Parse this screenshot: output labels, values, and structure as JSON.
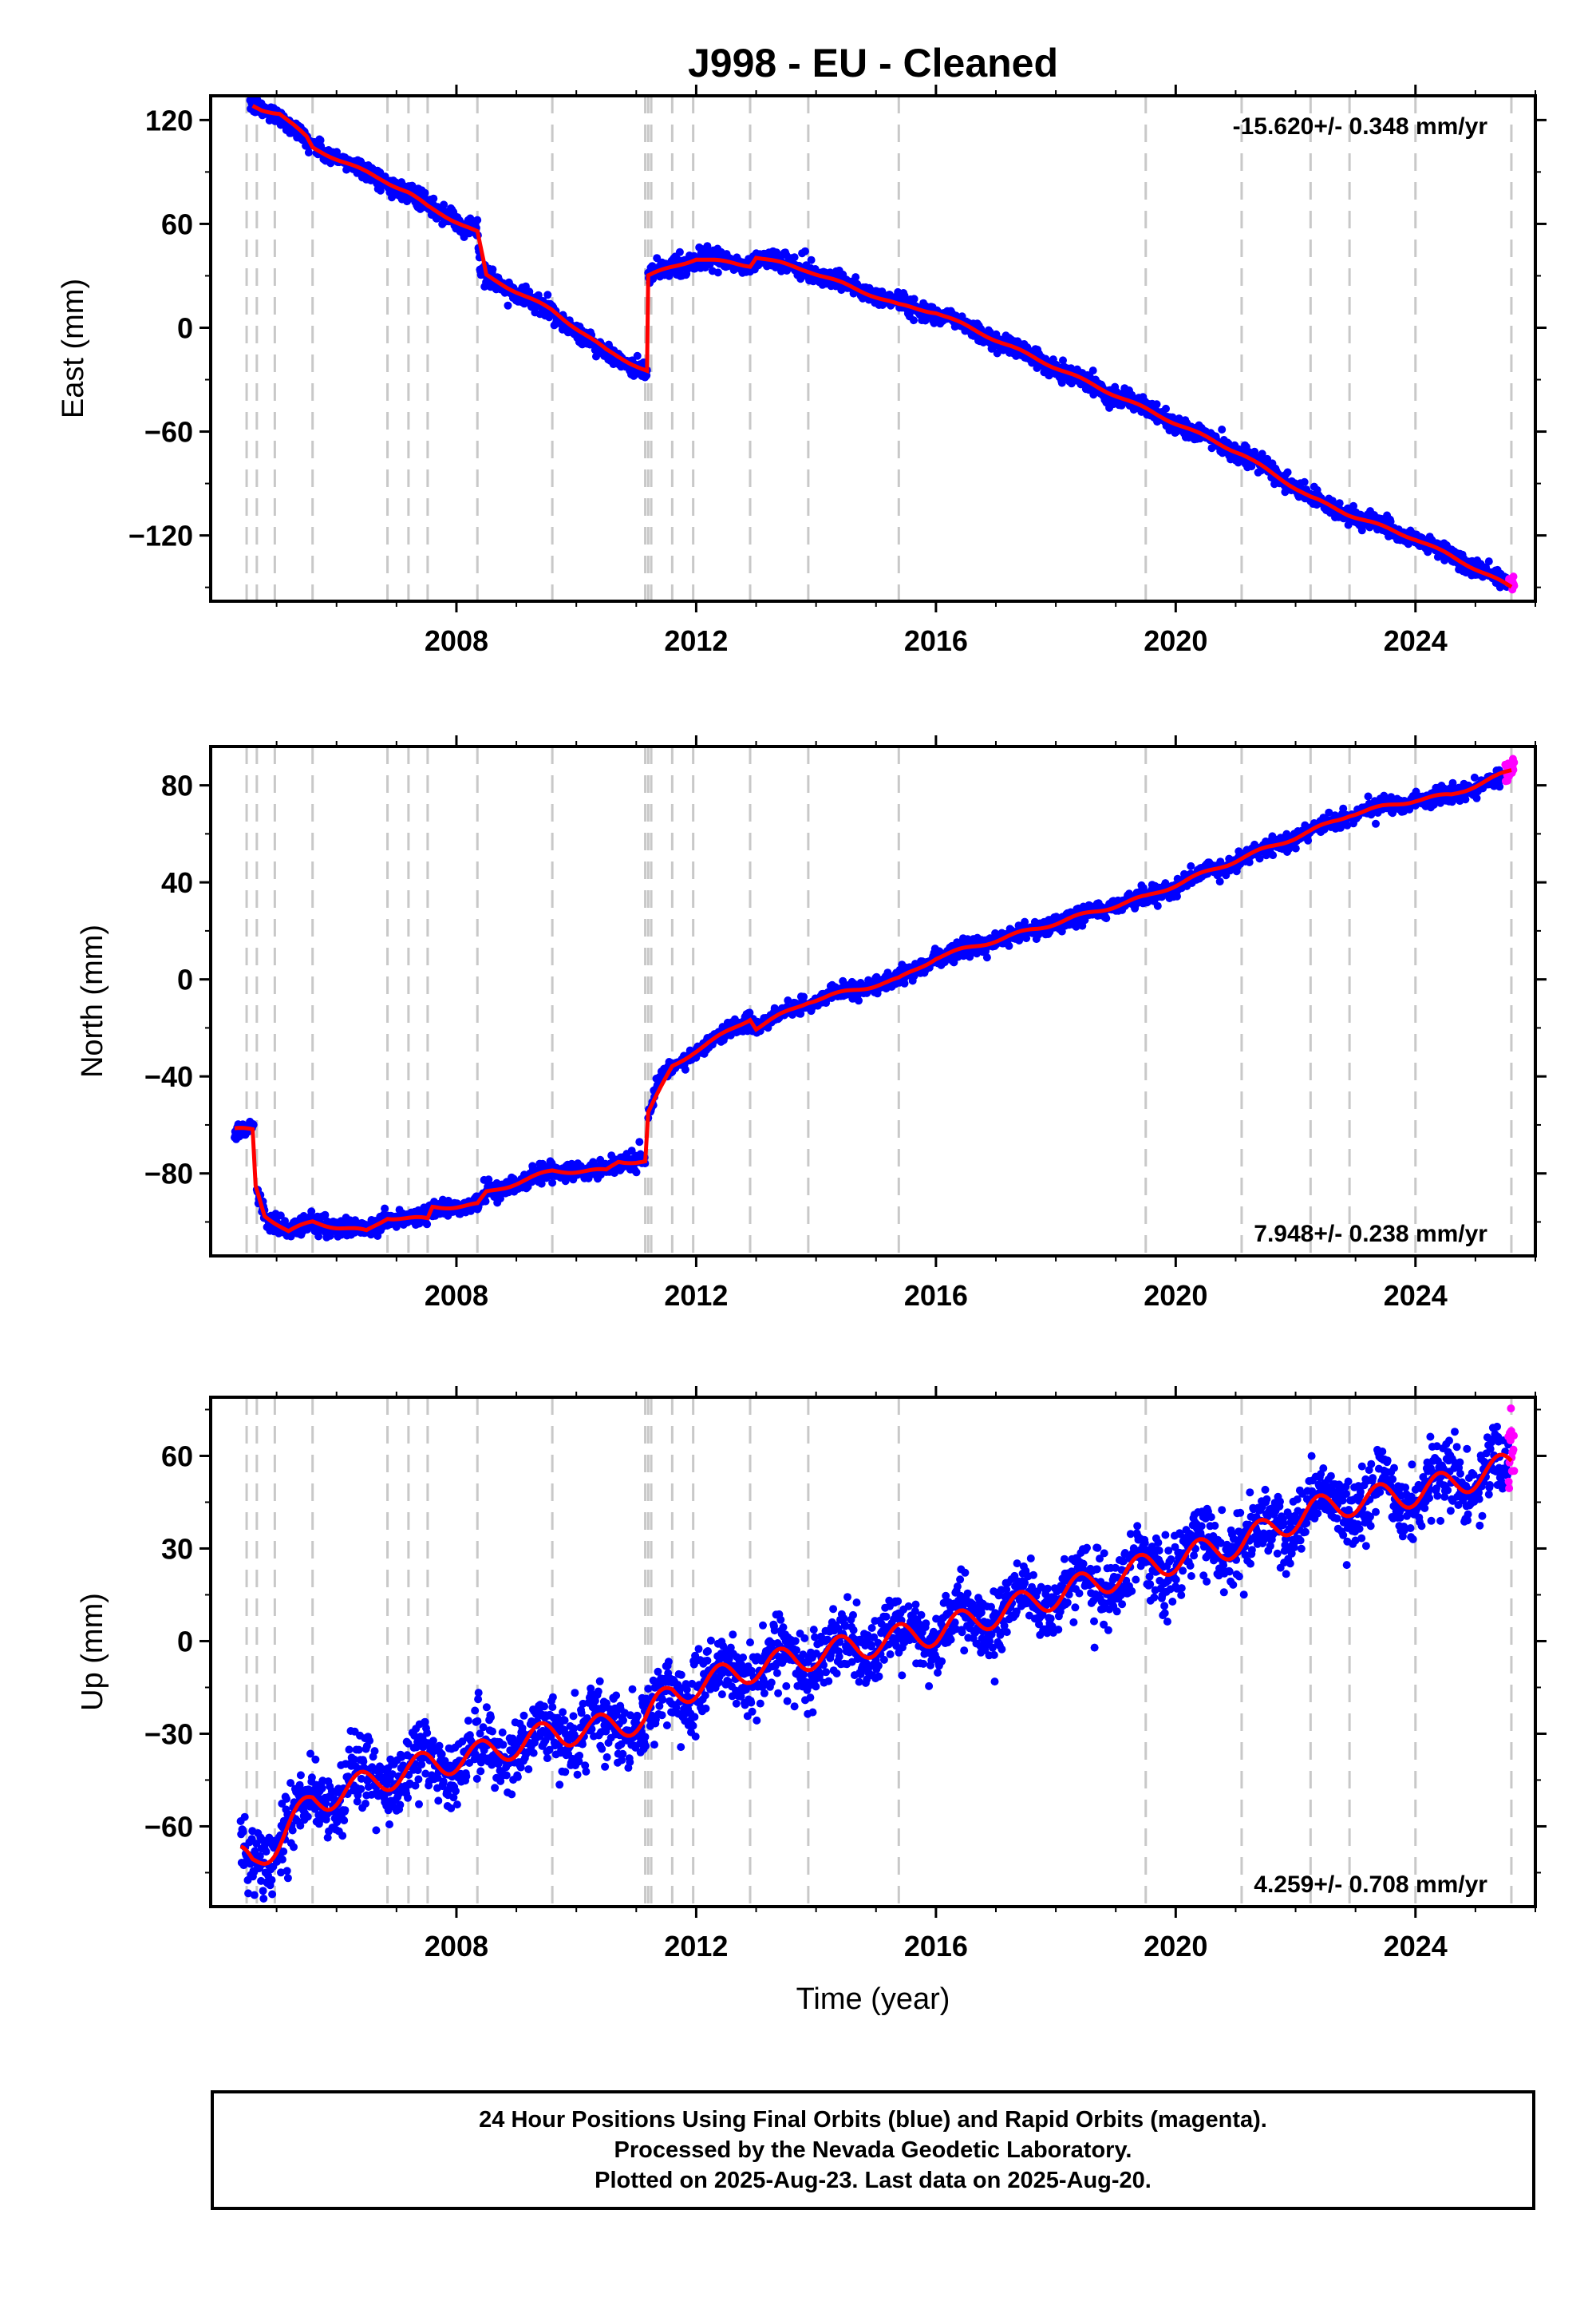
{
  "colors": {
    "final": "#0000ff",
    "rapid": "#ff00ff",
    "model": "#ff0000",
    "event_line": "#c8c8c8",
    "frame": "#000000"
  },
  "chart_data": [
    {
      "type": "scatter",
      "title": "J998  - EU - Cleaned",
      "ylabel": "East (mm)",
      "xlabel": "",
      "xlim": [
        2003.9,
        2026.0
      ],
      "ylim": [
        -158,
        134
      ],
      "x_ticks": [
        2008,
        2012,
        2016,
        2020,
        2024
      ],
      "y_ticks": [
        120,
        60,
        0,
        -60,
        -120
      ],
      "rate_label": "-15.620+/- 0.348 mm/yr",
      "rate_position": "top-right",
      "grid": false,
      "event_lines": [
        2004.5,
        2004.67,
        2004.97,
        2005.6,
        2006.85,
        2007.2,
        2007.52,
        2008.35,
        2009.6,
        2011.15,
        2011.2,
        2011.25,
        2011.6,
        2011.95,
        2012.9,
        2013.87,
        2015.38,
        2019.5,
        2021.1,
        2022.25,
        2022.9,
        2024.0,
        2025.6
      ],
      "model_path": [
        [
          2004.6,
          128
        ],
        [
          2004.75,
          126
        ],
        [
          2004.9,
          125
        ],
        [
          2005.05,
          124
        ],
        [
          2005.5,
          110
        ],
        [
          2005.6,
          104
        ],
        [
          2006.8,
          85
        ],
        [
          2007.2,
          78
        ],
        [
          2007.52,
          70
        ],
        [
          2008.35,
          55
        ],
        [
          2008.5,
          30
        ],
        [
          2009.6,
          10
        ],
        [
          2010.5,
          -13
        ],
        [
          2011.18,
          -25
        ],
        [
          2011.2,
          30
        ],
        [
          2011.6,
          35
        ],
        [
          2012,
          40
        ],
        [
          2012.9,
          36
        ],
        [
          2013,
          41
        ],
        [
          2013.87,
          33
        ],
        [
          2015.38,
          13
        ],
        [
          2016,
          9
        ],
        [
          2019.5,
          -47
        ],
        [
          2021.1,
          -73
        ],
        [
          2022.25,
          -98
        ],
        [
          2022.9,
          -108
        ],
        [
          2024,
          -122
        ],
        [
          2024.6,
          -132
        ],
        [
          2025.6,
          -150
        ]
      ],
      "series": [
        {
          "name": "Final Orbits",
          "segments": [
            {
              "x0": 2004.55,
              "x1": 2011.18,
              "anchors": [
                [
                  2004.55,
                  129
                ],
                [
                  2005.0,
                  124
                ],
                [
                  2005.6,
                  105
                ],
                [
                  2006.85,
                  84
                ],
                [
                  2007.2,
                  78
                ],
                [
                  2007.52,
                  70
                ],
                [
                  2008.35,
                  56
                ],
                [
                  2008.4,
                  32
                ],
                [
                  2009.6,
                  8
                ],
                [
                  2010.5,
                  -15
                ],
                [
                  2011.18,
                  -25
                ]
              ],
              "scatter": 2.5,
              "annual": 1.0
            },
            {
              "x0": 2011.2,
              "x1": 2025.55,
              "anchors": [
                [
                  2011.2,
                  30
                ],
                [
                  2011.6,
                  35
                ],
                [
                  2012,
                  40
                ],
                [
                  2012.9,
                  36
                ],
                [
                  2013,
                  41
                ],
                [
                  2013.87,
                  33
                ],
                [
                  2015.38,
                  14
                ],
                [
                  2016,
                  9
                ],
                [
                  2019.5,
                  -47
                ],
                [
                  2021.1,
                  -73
                ],
                [
                  2022.25,
                  -98
                ],
                [
                  2022.9,
                  -108
                ],
                [
                  2024,
                  -122
                ],
                [
                  2025.55,
                  -148
                ]
              ],
              "scatter": 2.5,
              "annual": 1.0
            }
          ]
        },
        {
          "name": "Rapid Orbits",
          "segments": [
            {
              "x0": 2025.55,
              "x1": 2025.65,
              "anchors": [
                [
                  2025.55,
                  -146
                ],
                [
                  2025.65,
                  -148
                ]
              ],
              "scatter": 2.2,
              "annual": 0
            }
          ]
        }
      ]
    },
    {
      "type": "scatter",
      "title": "",
      "ylabel": "North (mm)",
      "xlabel": "",
      "xlim": [
        2003.9,
        2026.0
      ],
      "ylim": [
        -114,
        96
      ],
      "x_ticks": [
        2008,
        2012,
        2016,
        2020,
        2024
      ],
      "y_ticks": [
        80,
        40,
        0,
        -40,
        -80
      ],
      "rate_label": "7.948+/- 0.238 mm/yr",
      "rate_position": "bottom-right",
      "grid": false,
      "event_lines": [
        2004.5,
        2004.67,
        2004.97,
        2005.6,
        2006.85,
        2007.2,
        2007.52,
        2008.35,
        2009.6,
        2011.15,
        2011.2,
        2011.25,
        2011.6,
        2011.95,
        2012.9,
        2013.87,
        2015.38,
        2019.5,
        2021.1,
        2022.25,
        2022.9,
        2024.0,
        2025.6
      ],
      "model_path": [
        [
          2004.3,
          -62
        ],
        [
          2004.6,
          -62
        ],
        [
          2004.65,
          -85
        ],
        [
          2004.8,
          -97
        ],
        [
          2005.2,
          -104
        ],
        [
          2005.6,
          -100
        ],
        [
          2006,
          -102
        ],
        [
          2006.5,
          -104
        ],
        [
          2006.85,
          -98
        ],
        [
          2007.52,
          -99
        ],
        [
          2007.6,
          -94
        ],
        [
          2008.35,
          -93
        ],
        [
          2008.5,
          -88
        ],
        [
          2009.6,
          -79
        ],
        [
          2010.5,
          -79
        ],
        [
          2010.7,
          -75
        ],
        [
          2011.15,
          -75
        ],
        [
          2011.2,
          -55
        ],
        [
          2011.6,
          -36
        ],
        [
          2011.95,
          -30
        ],
        [
          2012.5,
          -22
        ],
        [
          2012.9,
          -16
        ],
        [
          2013,
          -20
        ],
        [
          2013.87,
          -9
        ],
        [
          2015.38,
          0
        ],
        [
          2016,
          9
        ],
        [
          2019.5,
          34
        ],
        [
          2021.1,
          50
        ],
        [
          2022.25,
          61
        ],
        [
          2022.9,
          68
        ],
        [
          2024,
          74
        ],
        [
          2024.6,
          76
        ],
        [
          2025.6,
          86
        ]
      ],
      "series": [
        {
          "name": "Final Orbits",
          "segments": [
            {
              "x0": 2004.3,
              "x1": 2004.62,
              "anchors": [
                [
                  2004.3,
                  -62
                ],
                [
                  2004.62,
                  -61
                ]
              ],
              "scatter": 1.5,
              "annual": 0
            },
            {
              "x0": 2004.67,
              "x1": 2011.15,
              "anchors": [
                [
                  2004.67,
                  -87
                ],
                [
                  2004.85,
                  -99
                ],
                [
                  2005.2,
                  -104
                ],
                [
                  2005.6,
                  -100
                ],
                [
                  2006,
                  -102
                ],
                [
                  2006.5,
                  -104
                ],
                [
                  2006.85,
                  -98
                ],
                [
                  2007.52,
                  -99
                ],
                [
                  2007.6,
                  -94
                ],
                [
                  2008.35,
                  -93
                ],
                [
                  2008.5,
                  -88
                ],
                [
                  2009.6,
                  -79
                ],
                [
                  2010.5,
                  -79
                ],
                [
                  2010.7,
                  -75
                ],
                [
                  2011.15,
                  -75
                ]
              ],
              "scatter": 1.8,
              "annual": 0.8
            },
            {
              "x0": 2011.2,
              "x1": 2025.5,
              "anchors": [
                [
                  2011.2,
                  -56
                ],
                [
                  2011.4,
                  -42
                ],
                [
                  2011.6,
                  -36
                ],
                [
                  2011.95,
                  -30
                ],
                [
                  2012.5,
                  -22
                ],
                [
                  2012.9,
                  -16
                ],
                [
                  2013,
                  -20
                ],
                [
                  2013.87,
                  -9
                ],
                [
                  2015.38,
                  0
                ],
                [
                  2016,
                  9
                ],
                [
                  2019.5,
                  34
                ],
                [
                  2021.1,
                  50
                ],
                [
                  2022.25,
                  61
                ],
                [
                  2022.9,
                  68
                ],
                [
                  2024,
                  74
                ],
                [
                  2024.6,
                  76
                ],
                [
                  2025.5,
                  83
                ]
              ],
              "scatter": 1.6,
              "annual": 0.8
            }
          ]
        },
        {
          "name": "Rapid Orbits",
          "segments": [
            {
              "x0": 2025.5,
              "x1": 2025.65,
              "anchors": [
                [
                  2025.5,
                  85
                ],
                [
                  2025.65,
                  89
                ]
              ],
              "scatter": 2.0,
              "annual": 0
            }
          ]
        }
      ]
    },
    {
      "type": "scatter",
      "title": "",
      "ylabel": "Up (mm)",
      "xlabel": "Time (year)",
      "xlim": [
        2003.9,
        2026.0
      ],
      "ylim": [
        -86,
        79
      ],
      "x_ticks": [
        2008,
        2012,
        2016,
        2020,
        2024
      ],
      "y_ticks": [
        60,
        30,
        0,
        -30,
        -60
      ],
      "rate_label": "4.259+/- 0.708 mm/yr",
      "rate_position": "bottom-right",
      "grid": false,
      "event_lines": [
        2004.5,
        2004.67,
        2004.97,
        2005.6,
        2006.85,
        2007.2,
        2007.52,
        2008.35,
        2009.6,
        2011.15,
        2011.2,
        2011.25,
        2011.6,
        2011.95,
        2012.9,
        2013.87,
        2015.38,
        2019.5,
        2021.1,
        2022.25,
        2022.9,
        2024.0,
        2025.6
      ],
      "model_path": [
        [
          2004.4,
          -71
        ],
        [
          2004.6,
          -72
        ],
        [
          2005,
          -65
        ],
        [
          2005.6,
          -52
        ],
        [
          2006.85,
          -44
        ],
        [
          2007.52,
          -40
        ],
        [
          2008.35,
          -37
        ],
        [
          2009.6,
          -30
        ],
        [
          2010.5,
          -28
        ],
        [
          2011.15,
          -25
        ],
        [
          2011.6,
          -17
        ],
        [
          2012.9,
          -9
        ],
        [
          2013.87,
          -5
        ],
        [
          2015.38,
          1
        ],
        [
          2016,
          3
        ],
        [
          2019.5,
          24
        ],
        [
          2021.1,
          32
        ],
        [
          2022.25,
          42
        ],
        [
          2022.9,
          45
        ],
        [
          2024,
          48
        ],
        [
          2024.6,
          51
        ],
        [
          2025.6,
          57
        ]
      ],
      "series": [
        {
          "name": "Final Orbits",
          "segments": [
            {
              "x0": 2004.4,
              "x1": 2025.55,
              "anchors": [
                [
                  2004.4,
                  -71
                ],
                [
                  2004.6,
                  -72
                ],
                [
                  2005,
                  -65
                ],
                [
                  2005.6,
                  -52
                ],
                [
                  2006.85,
                  -44
                ],
                [
                  2007.52,
                  -40
                ],
                [
                  2008.35,
                  -37
                ],
                [
                  2009.6,
                  -30
                ],
                [
                  2010.5,
                  -28
                ],
                [
                  2011.15,
                  -25
                ],
                [
                  2011.6,
                  -17
                ],
                [
                  2012.9,
                  -9
                ],
                [
                  2013.87,
                  -5
                ],
                [
                  2015.38,
                  1
                ],
                [
                  2016,
                  3
                ],
                [
                  2019.5,
                  24
                ],
                [
                  2021.1,
                  32
                ],
                [
                  2022.25,
                  42
                ],
                [
                  2022.9,
                  45
                ],
                [
                  2024,
                  48
                ],
                [
                  2024.6,
                  51
                ],
                [
                  2025.55,
                  56
                ]
              ],
              "scatter": 5.5,
              "annual": 5.0
            }
          ]
        },
        {
          "name": "Rapid Orbits",
          "segments": [
            {
              "x0": 2025.55,
              "x1": 2025.65,
              "anchors": [
                [
                  2025.55,
                  62
                ],
                [
                  2025.65,
                  64
                ]
              ],
              "scatter": 6.0,
              "annual": 0
            }
          ]
        }
      ]
    }
  ],
  "footer": {
    "line1": "24 Hour Positions Using Final Orbits (blue) and Rapid Orbits (magenta).",
    "line2": "Processed by the Nevada Geodetic Laboratory.",
    "line3": "Plotted on 2025-Aug-23. Last data on 2025-Aug-20."
  }
}
